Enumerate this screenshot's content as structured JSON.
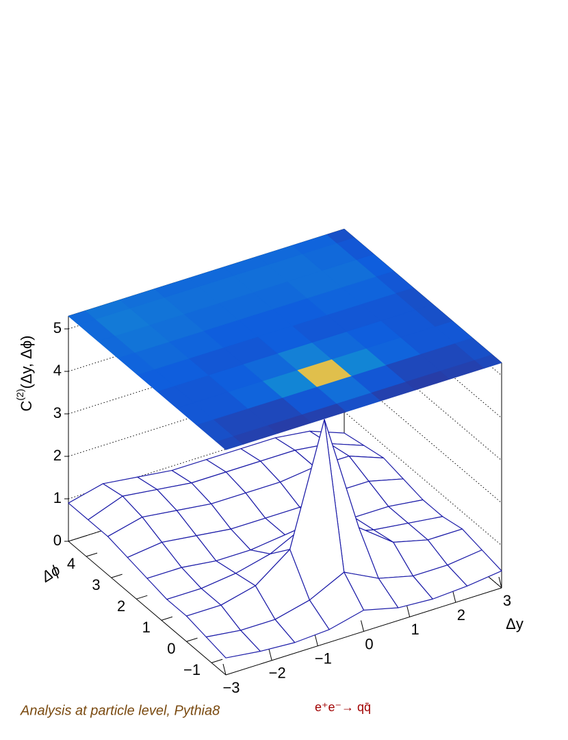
{
  "chart_data": {
    "type": "surface",
    "z_title": {
      "base": "C",
      "sup": "(2)",
      "rest": "(Δy, Δϕ)"
    },
    "x_title": "Δy",
    "y_title": "Δϕ",
    "annotations": [
      "Analysis at particle level, Pythia8",
      "e⁺e⁻→ qq̄"
    ],
    "x": [
      -3,
      -2.25,
      -1.5,
      -0.75,
      0,
      0.75,
      1.5,
      2.25,
      3
    ],
    "y": [
      -1.5708,
      -0.7854,
      0,
      0.7854,
      1.5708,
      2.3562,
      3.1416,
      3.927,
      4.7124
    ],
    "z": [
      [
        0.4,
        0.3,
        0.25,
        0.3,
        0.5,
        0.3,
        0.25,
        0.3,
        0.4
      ],
      [
        0.5,
        0.4,
        0.4,
        0.6,
        1.0,
        0.6,
        0.4,
        0.4,
        0.5
      ],
      [
        0.6,
        0.6,
        0.8,
        1.4,
        4.2,
        1.4,
        0.8,
        0.6,
        0.6
      ],
      [
        0.6,
        0.6,
        0.7,
        0.9,
        1.3,
        0.9,
        0.7,
        0.6,
        0.5
      ],
      [
        0.7,
        0.7,
        0.6,
        0.6,
        0.7,
        0.6,
        0.6,
        0.6,
        0.5
      ],
      [
        0.8,
        0.9,
        0.8,
        0.7,
        0.7,
        0.7,
        0.8,
        0.8,
        0.6
      ],
      [
        0.9,
        1.1,
        1.0,
        0.9,
        0.9,
        0.9,
        1.0,
        1.0,
        0.7
      ],
      [
        0.9,
        1.2,
        1.1,
        1.0,
        1.0,
        1.0,
        1.0,
        0.9,
        0.6
      ],
      [
        0.9,
        1.1,
        1.0,
        0.9,
        0.9,
        0.9,
        0.9,
        0.8,
        0.5
      ]
    ],
    "xlim": [
      -3,
      3
    ],
    "ylim": [
      -1.5708,
      4.7124
    ],
    "zlim": [
      0,
      5.3
    ],
    "xticks": [
      {
        "value": -3,
        "label": "−3"
      },
      {
        "value": -2,
        "label": "−2"
      },
      {
        "value": -1,
        "label": "−1"
      },
      0,
      1,
      2,
      3
    ],
    "yticks": [
      {
        "value": -1,
        "label": "−1"
      },
      0,
      1,
      2,
      3,
      4
    ],
    "zticks": [
      0,
      1,
      2,
      3,
      4,
      5
    ],
    "grid": true,
    "mesh_color": "#1c1ca8",
    "palette": [
      "#352a87",
      "#0f5cdd",
      "#1481d6",
      "#06a4ca",
      "#2eb7a4",
      "#87bf77",
      "#d1bb59",
      "#fec832",
      "#f9fb0e"
    ]
  }
}
